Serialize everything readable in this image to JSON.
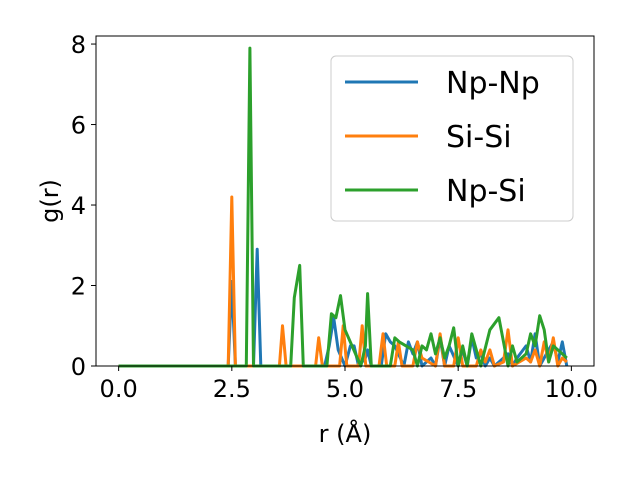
{
  "chart_data": {
    "type": "line",
    "xlabel": "r (Å)",
    "ylabel": "g(r)",
    "xlim": [
      -0.5,
      10.5
    ],
    "ylim": [
      0,
      8.2
    ],
    "xticks": [
      "0.0",
      "2.5",
      "5.0",
      "7.5",
      "10.0"
    ],
    "yticks": [
      "0",
      "2",
      "4",
      "6",
      "8"
    ],
    "grid": false,
    "legend_position": "top-right",
    "series": [
      {
        "name": "Np-Np",
        "color": "#1f77b4",
        "x": [
          0.0,
          2.42,
          2.5,
          2.58,
          2.98,
          3.06,
          3.14,
          4.55,
          4.65,
          4.75,
          4.85,
          5.0,
          5.12,
          5.2,
          5.3,
          5.45,
          5.5,
          5.58,
          5.8,
          5.9,
          6.0,
          6.1,
          6.3,
          6.4,
          6.5,
          6.6,
          6.7,
          6.9,
          7.0,
          7.1,
          7.2,
          7.3,
          7.5,
          7.6,
          7.7,
          7.8,
          7.9,
          8.0,
          8.1,
          8.2,
          8.3,
          8.5,
          8.6,
          8.7,
          8.8,
          9.0,
          9.1,
          9.2,
          9.3,
          9.5,
          9.6,
          9.7,
          9.8,
          9.9
        ],
        "y": [
          0,
          0,
          2.1,
          0,
          0,
          2.9,
          0,
          0,
          0.5,
          1.2,
          0.4,
          0,
          0.5,
          0.5,
          0,
          0.2,
          0.4,
          0,
          0,
          0.8,
          0.6,
          0.5,
          0,
          0.6,
          0.3,
          0.6,
          0,
          0.2,
          0,
          0.7,
          0,
          0.5,
          0,
          0.4,
          0,
          0.7,
          0.2,
          0.3,
          0,
          0.2,
          0,
          0.2,
          0.3,
          0,
          0.2,
          0.5,
          0.1,
          0.8,
          0,
          0.4,
          0.6,
          0.1,
          0.6,
          0
        ]
      },
      {
        "name": "Si-Si",
        "color": "#ff7f0e",
        "x": [
          0.0,
          2.42,
          2.5,
          2.58,
          3.55,
          3.62,
          3.7,
          4.35,
          4.42,
          4.5,
          4.88,
          4.96,
          5.04,
          5.3,
          5.38,
          5.46,
          5.75,
          5.84,
          5.92,
          6.1,
          6.18,
          6.26,
          6.5,
          6.6,
          6.7,
          7.0,
          7.1,
          7.2,
          7.4,
          7.5,
          7.6,
          7.9,
          8.0,
          8.1,
          8.2,
          8.3,
          8.5,
          8.6,
          8.7,
          9.0,
          9.1,
          9.2,
          9.3,
          9.4,
          9.5,
          9.6,
          9.7,
          9.8,
          9.9
        ],
        "y": [
          0,
          0,
          4.2,
          0,
          0,
          1.0,
          0,
          0,
          0.7,
          0,
          0,
          1.0,
          0,
          0,
          1.0,
          0,
          0,
          0.8,
          0,
          0,
          0.6,
          0,
          0,
          0.6,
          0.2,
          0,
          0.8,
          0,
          0,
          0.7,
          0,
          0,
          0.4,
          0.1,
          0.4,
          0,
          0.1,
          0.9,
          0,
          0.2,
          0.1,
          0.4,
          0,
          0.6,
          0.1,
          0.7,
          0,
          0.2,
          0.1
        ]
      },
      {
        "name": "Np-Si",
        "color": "#2ca02c",
        "x": [
          0.0,
          2.82,
          2.9,
          2.98,
          3.8,
          3.88,
          4.0,
          4.08,
          4.6,
          4.7,
          4.8,
          4.9,
          5.0,
          5.35,
          5.45,
          5.5,
          5.58,
          6.0,
          6.1,
          6.2,
          6.5,
          6.6,
          6.7,
          6.8,
          6.9,
          7.0,
          7.1,
          7.2,
          7.3,
          7.4,
          7.5,
          7.6,
          7.7,
          7.8,
          8.0,
          8.2,
          8.4,
          8.5,
          8.6,
          8.7,
          8.8,
          9.0,
          9.1,
          9.2,
          9.3,
          9.4,
          9.5,
          9.6,
          9.7,
          9.8,
          9.9
        ],
        "y": [
          0,
          0,
          7.9,
          0,
          0,
          1.7,
          2.5,
          0,
          0,
          1.3,
          1.2,
          1.75,
          0.9,
          0,
          0.5,
          1.8,
          0,
          0,
          0.7,
          0.6,
          0.4,
          0,
          0.5,
          0.4,
          0.8,
          0.3,
          0.7,
          0.2,
          0.5,
          0.95,
          0,
          0.5,
          0,
          0.8,
          0,
          0.9,
          1.2,
          0.6,
          0,
          0.5,
          0.1,
          0.3,
          0.8,
          0.5,
          1.25,
          0.9,
          0.1,
          0.5,
          0.4,
          0.3,
          0.2
        ]
      }
    ]
  }
}
